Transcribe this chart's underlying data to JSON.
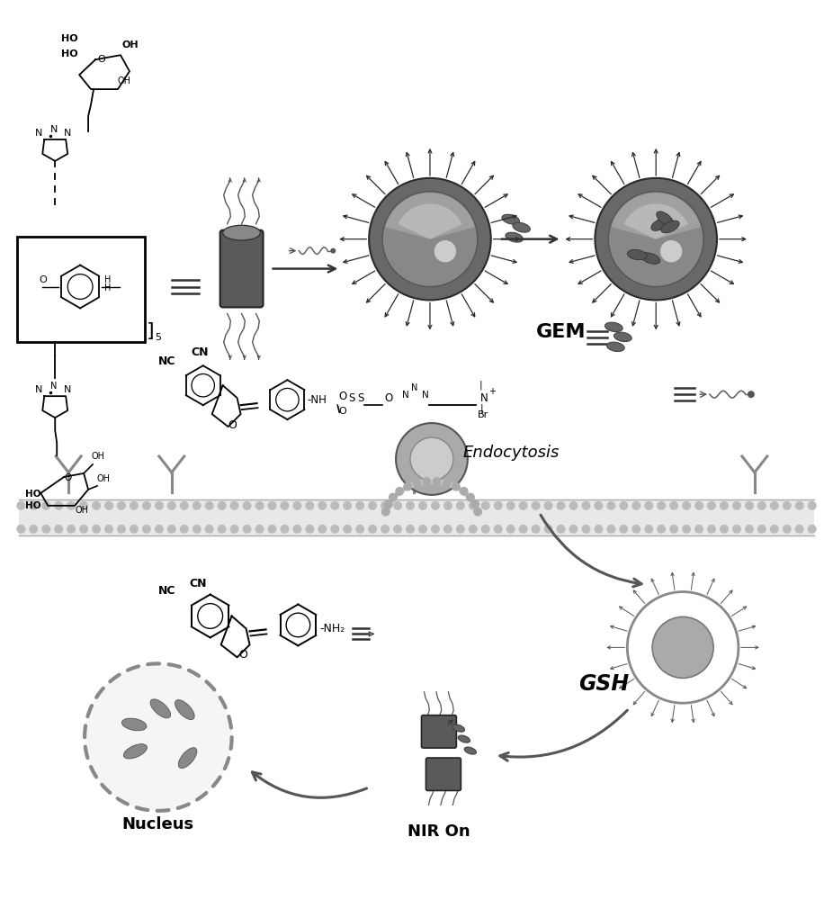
{
  "bg_color": "#ffffff",
  "fig_width": 9.26,
  "fig_height": 10.0,
  "label_endocytosis": "Endocytosis",
  "label_gsh": "GSH",
  "label_nir": "NIR On",
  "label_nucleus": "Nucleus",
  "label_gem": "GEM"
}
